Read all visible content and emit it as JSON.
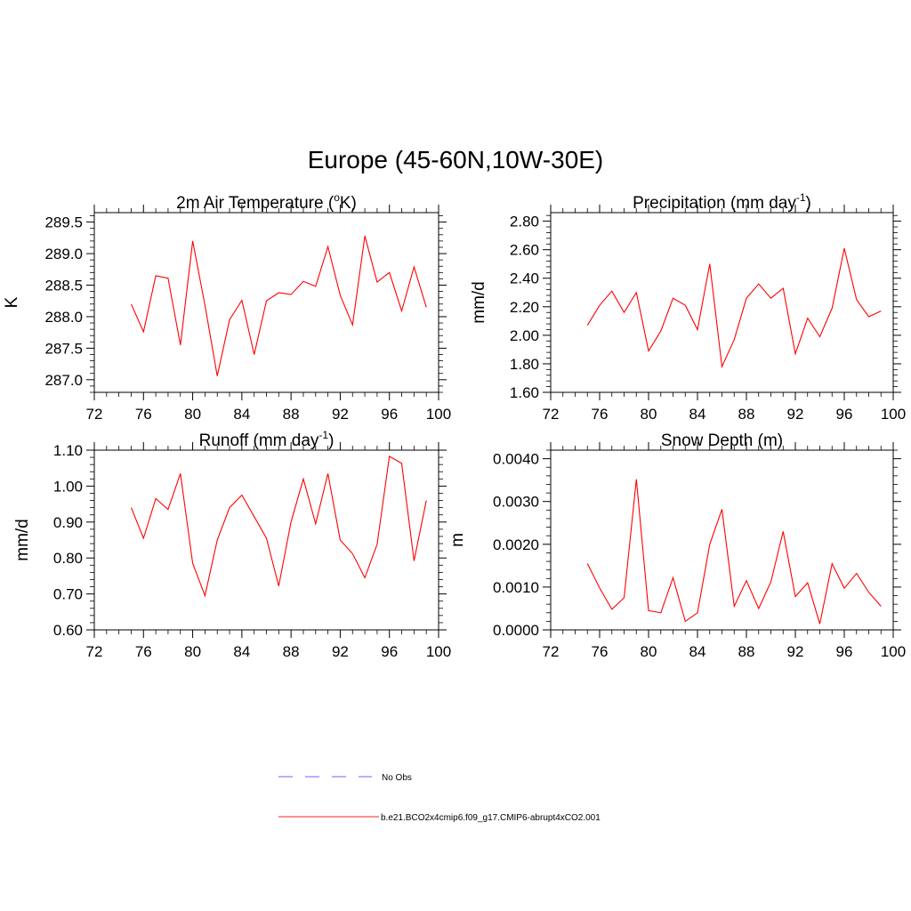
{
  "page_title": "Europe (45-60N,10W-30E)",
  "chart_data": [
    {
      "type": "line",
      "title": "2m Air Temperature (oK)",
      "title_main": "2m Air Temperature (",
      "title_sup": "o",
      "title_tail": "K)",
      "ylabel": "K",
      "xlim": [
        72,
        100
      ],
      "ylim": [
        286.8,
        289.65
      ],
      "xticks": [
        "72",
        "76",
        "80",
        "84",
        "88",
        "92",
        "96",
        "100"
      ],
      "yticks": [
        "287.0",
        "287.5",
        "288.0",
        "288.5",
        "289.0",
        "289.5"
      ],
      "x": [
        75,
        76,
        77,
        78,
        79,
        80,
        81,
        82,
        83,
        84,
        85,
        86,
        87,
        88,
        89,
        90,
        91,
        92,
        93,
        94,
        95,
        96,
        97,
        98,
        99
      ],
      "series": [
        {
          "name": "b.e21.BCO2x4cmip6.f09_g17.CMIP6-abrupt4xCO2.001",
          "values": [
            288.2,
            287.76,
            288.65,
            288.61,
            287.55,
            289.2,
            288.18,
            287.06,
            287.95,
            288.26,
            287.4,
            288.25,
            288.38,
            288.35,
            288.56,
            288.48,
            289.11,
            288.34,
            287.87,
            289.28,
            288.55,
            288.7,
            288.09,
            288.79,
            288.15
          ]
        }
      ]
    },
    {
      "type": "line",
      "title": "Precipitation (mm day-1)",
      "title_main": "Precipitation (mm day",
      "title_sup": "-1",
      "title_tail": ")",
      "ylabel": "mm/d",
      "xlim": [
        72,
        100
      ],
      "ylim": [
        1.6,
        2.86
      ],
      "xticks": [
        "72",
        "76",
        "80",
        "84",
        "88",
        "92",
        "96",
        "100"
      ],
      "yticks": [
        "1.60",
        "1.80",
        "2.00",
        "2.20",
        "2.40",
        "2.60",
        "2.80"
      ],
      "x": [
        75,
        76,
        77,
        78,
        79,
        80,
        81,
        82,
        83,
        84,
        85,
        86,
        87,
        88,
        89,
        90,
        91,
        92,
        93,
        94,
        95,
        96,
        97,
        98,
        99
      ],
      "series": [
        {
          "name": "b.e21.BCO2x4cmip6.f09_g17.CMIP6-abrupt4xCO2.001",
          "values": [
            2.07,
            2.21,
            2.31,
            2.16,
            2.3,
            1.89,
            2.03,
            2.26,
            2.21,
            2.04,
            2.5,
            1.78,
            1.97,
            2.26,
            2.36,
            2.26,
            2.33,
            1.87,
            2.12,
            1.99,
            2.19,
            2.61,
            2.25,
            2.13,
            2.17
          ]
        }
      ]
    },
    {
      "type": "line",
      "title": "Runoff (mm day-1)",
      "title_main": "Runoff (mm day",
      "title_sup": "-1",
      "title_tail": ")",
      "ylabel": "mm/d",
      "xlim": [
        72,
        100
      ],
      "ylim": [
        0.6,
        1.1
      ],
      "xticks": [
        "72",
        "76",
        "80",
        "84",
        "88",
        "92",
        "96",
        "100"
      ],
      "yticks": [
        "0.60",
        "0.70",
        "0.80",
        "0.90",
        "1.00",
        "1.10"
      ],
      "x": [
        75,
        76,
        77,
        78,
        79,
        80,
        81,
        82,
        83,
        84,
        85,
        86,
        87,
        88,
        89,
        90,
        91,
        92,
        93,
        94,
        95,
        96,
        97,
        98,
        99
      ],
      "series": [
        {
          "name": "b.e21.BCO2x4cmip6.f09_g17.CMIP6-abrupt4xCO2.001",
          "values": [
            0.94,
            0.855,
            0.965,
            0.935,
            1.035,
            0.785,
            0.695,
            0.85,
            0.94,
            0.975,
            0.915,
            0.855,
            0.722,
            0.9,
            1.02,
            0.895,
            1.035,
            0.85,
            0.812,
            0.745,
            0.838,
            1.083,
            1.063,
            0.792,
            0.96
          ]
        }
      ]
    },
    {
      "type": "line",
      "title": "Snow Depth (m)",
      "title_main": "Snow Depth (m)",
      "title_sup": "",
      "title_tail": "",
      "ylabel": "m",
      "xlim": [
        72,
        100
      ],
      "ylim": [
        0.0,
        0.0042
      ],
      "xticks": [
        "72",
        "76",
        "80",
        "84",
        "88",
        "92",
        "96",
        "100"
      ],
      "yticks": [
        "0.0000",
        "0.0010",
        "0.0020",
        "0.0030",
        "0.0040"
      ],
      "x": [
        75,
        76,
        77,
        78,
        79,
        80,
        81,
        82,
        83,
        84,
        85,
        86,
        87,
        88,
        89,
        90,
        91,
        92,
        93,
        94,
        95,
        96,
        97,
        98,
        99
      ],
      "series": [
        {
          "name": "b.e21.BCO2x4cmip6.f09_g17.CMIP6-abrupt4xCO2.001",
          "values": [
            0.00155,
            0.00098,
            0.00048,
            0.00075,
            0.00352,
            0.00045,
            0.0004,
            0.00122,
            0.0002,
            0.0004,
            0.002,
            0.00282,
            0.00055,
            0.00115,
            0.0005,
            0.00112,
            0.0023,
            0.00078,
            0.0011,
            0.00014,
            0.00155,
            0.00097,
            0.00132,
            0.00088,
            0.00055
          ]
        }
      ]
    }
  ],
  "legend": {
    "entries": [
      {
        "label": "No Obs",
        "color": "#9999ff",
        "style": "dashed"
      },
      {
        "label": "b.e21.BCO2x4cmip6.f09_g17.CMIP6-abrupt4xCO2.001",
        "color": "#ff4d4d",
        "style": "solid"
      }
    ]
  },
  "colors": {
    "series_line": "#ff0000",
    "axis": "#000000"
  }
}
